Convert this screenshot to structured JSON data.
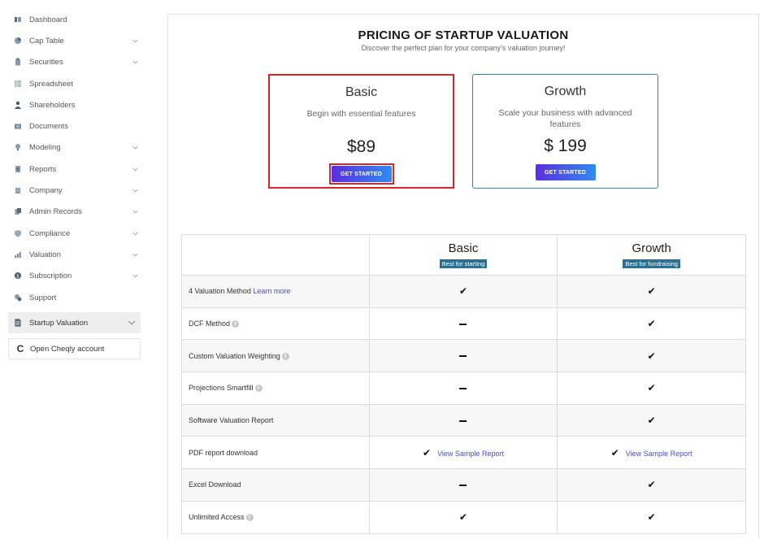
{
  "sidebar": {
    "items": [
      {
        "label": "Dashboard",
        "icon": "dashboard-icon",
        "has_chevron": false
      },
      {
        "label": "Cap Table",
        "icon": "pie-chart-icon",
        "has_chevron": true
      },
      {
        "label": "Securities",
        "icon": "clipboard-icon",
        "has_chevron": true
      },
      {
        "label": "Spreadsheet",
        "icon": "grid-icon",
        "has_chevron": false
      },
      {
        "label": "Shareholders",
        "icon": "user-icon",
        "has_chevron": false
      },
      {
        "label": "Documents",
        "icon": "folder-icon",
        "has_chevron": false
      },
      {
        "label": "Modeling",
        "icon": "lightbulb-icon",
        "has_chevron": true
      },
      {
        "label": "Reports",
        "icon": "report-icon",
        "has_chevron": true
      },
      {
        "label": "Company",
        "icon": "building-icon",
        "has_chevron": true
      },
      {
        "label": "Admin Records",
        "icon": "records-icon",
        "has_chevron": true
      },
      {
        "label": "Compliance",
        "icon": "shield-icon",
        "has_chevron": true
      },
      {
        "label": "Valuation",
        "icon": "valuation-icon",
        "has_chevron": true
      },
      {
        "label": "Subscription",
        "icon": "dollar-icon",
        "has_chevron": true
      },
      {
        "label": "Support",
        "icon": "support-icon",
        "has_chevron": false
      }
    ],
    "active_item": {
      "label": "Startup Valuation",
      "icon": "document-icon"
    },
    "open_account": {
      "label": "Open Cheqly account",
      "icon": "cheqly-logo-icon"
    }
  },
  "main": {
    "title": "PRICING OF STARTUP VALUATION",
    "subtitle": "Discover the perfect plan for your company's valuation journey!",
    "plans": [
      {
        "name": "Basic",
        "description": "Begin with essential features",
        "price": "$89",
        "button_label": "GET STARTED"
      },
      {
        "name": "Growth",
        "description": "Scale your business with advanced features",
        "price": "$ 199",
        "button_label": "GET STARTED"
      }
    ],
    "comparison": {
      "columns": [
        {
          "name": "Basic",
          "badge": "Best for starting"
        },
        {
          "name": "Growth",
          "badge": "Best for fundraising"
        }
      ],
      "rows": [
        {
          "feature": "4 Valuation Method",
          "link": "Learn more",
          "info": false,
          "basic": "check",
          "growth": "check"
        },
        {
          "feature": "DCF Method",
          "link": "",
          "info": true,
          "basic": "dash",
          "growth": "check"
        },
        {
          "feature": "Custom Valuation Weighting",
          "link": "",
          "info": true,
          "basic": "dash",
          "growth": "check"
        },
        {
          "feature": "Projections Smartfill",
          "link": "",
          "info": true,
          "basic": "dash",
          "growth": "check"
        },
        {
          "feature": "Software Valuation Report",
          "link": "",
          "info": false,
          "basic": "dash",
          "growth": "check"
        },
        {
          "feature": "PDF report download",
          "link": "",
          "info": false,
          "basic": "check",
          "growth": "check",
          "basic_link": "View Sample Report",
          "growth_link": "View Sample Report"
        },
        {
          "feature": "Excel Download",
          "link": "",
          "info": false,
          "basic": "dash",
          "growth": "check"
        },
        {
          "feature": "Unlimited Access",
          "link": "",
          "info": true,
          "basic": "check",
          "growth": "check"
        }
      ]
    }
  },
  "colors": {
    "highlight_border": "#d9262a",
    "growth_border": "#3b82b0",
    "button_gradient_start": "#5b2de0",
    "button_gradient_end": "#2f8cf0",
    "badge_bg": "#2b6f93",
    "link": "#4a4ad0"
  }
}
